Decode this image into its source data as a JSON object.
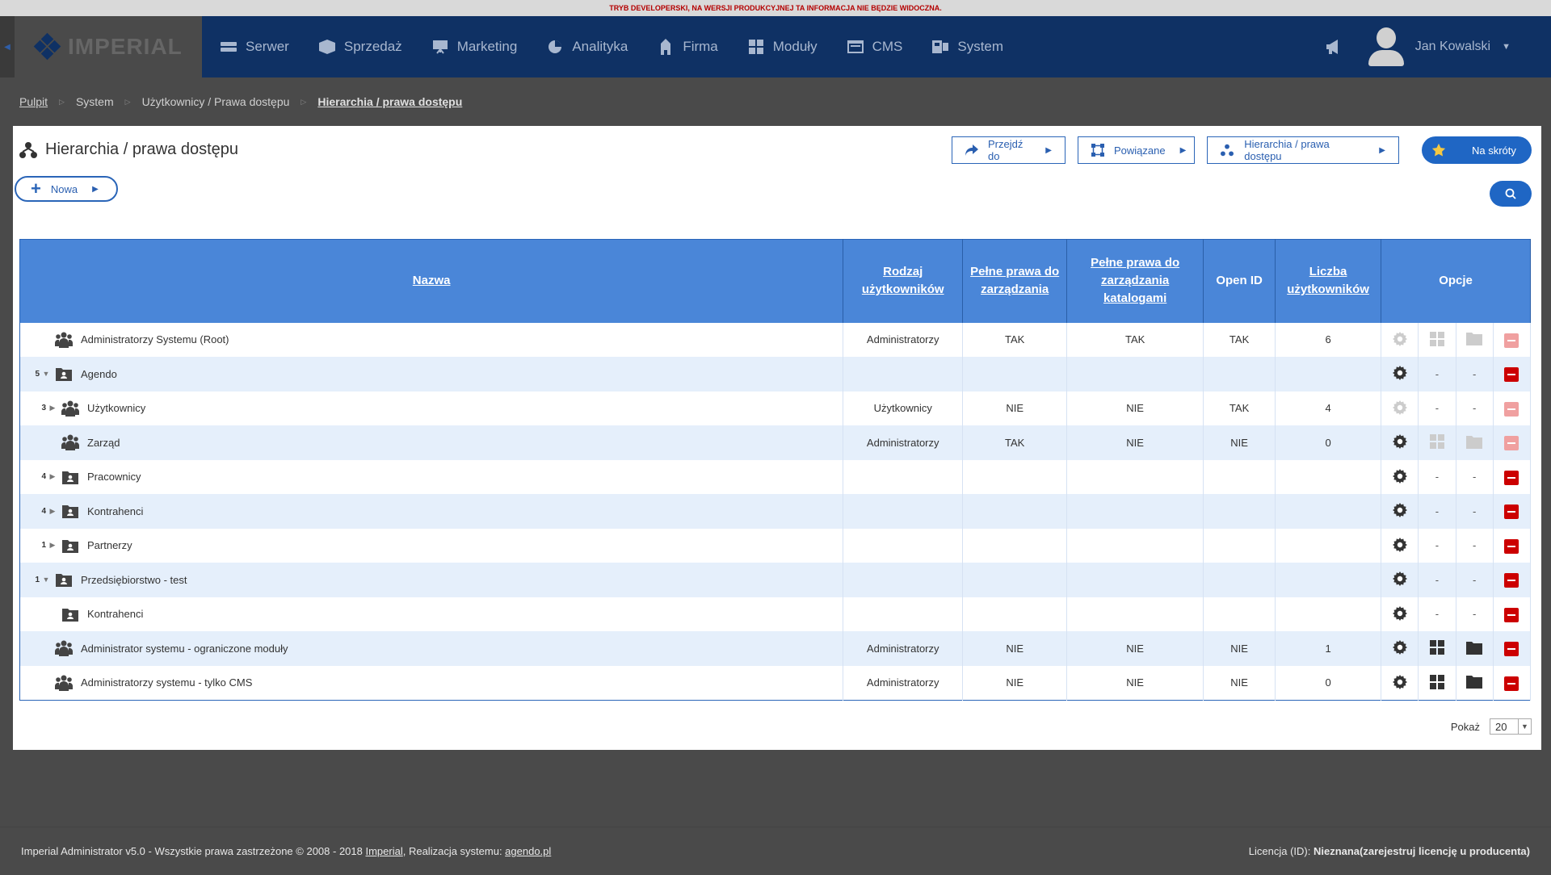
{
  "dev_banner": "TRYB DEVELOPERSKI, NA WERSJI PRODUKCYJNEJ TA INFORMACJA NIE BĘDZIE WIDOCZNA.",
  "logo": {
    "text": "IMPERIAL"
  },
  "nav": {
    "items": [
      {
        "label": "Serwer",
        "icon": "server-icon"
      },
      {
        "label": "Sprzedaż",
        "icon": "box-icon"
      },
      {
        "label": "Marketing",
        "icon": "presentation-icon"
      },
      {
        "label": "Analityka",
        "icon": "pie-chart-icon"
      },
      {
        "label": "Firma",
        "icon": "building-icon"
      },
      {
        "label": "Moduły",
        "icon": "grid-icon"
      },
      {
        "label": "CMS",
        "icon": "cms-window-icon"
      },
      {
        "label": "System",
        "icon": "system-icon"
      }
    ],
    "user_name": "Jan Kowalski"
  },
  "breadcrumb": {
    "items": [
      "Pulpit",
      "System",
      "Użytkownicy / Prawa dostępu"
    ],
    "current": "Hierarchia / prawa dostępu"
  },
  "page": {
    "title": "Hierarchia / prawa dostępu",
    "buttons": {
      "goto": "Przejdź do",
      "related": "Powiązane",
      "hierarchy": "Hierarchia / prawa dostępu",
      "shortcuts": "Na skróty",
      "new": "Nowa"
    }
  },
  "table": {
    "headers": {
      "name": "Nazwa",
      "user_type": "Rodzaj użytkowników",
      "full_rights": "Pełne prawa do zarządzania",
      "full_catalog_rights": "Pełne prawa do zarządzania katalogami",
      "open_id": "Open ID",
      "user_count": "Liczba użytkowników",
      "options": "Opcje"
    },
    "rows": [
      {
        "level": 0,
        "count": "",
        "arrow": "",
        "icon": "group",
        "name": "Administratorzy Systemu (Root)",
        "type": "Administratorzy",
        "full": "TAK",
        "catalog": "TAK",
        "openid": "TAK",
        "users": "6",
        "gear": "light",
        "grid": "light",
        "folder": "light",
        "del": "light"
      },
      {
        "level": 0,
        "count": "5",
        "arrow": "down",
        "icon": "folder-users",
        "name": "Agendo",
        "type": "",
        "full": "",
        "catalog": "",
        "openid": "",
        "users": "",
        "gear": "dark",
        "grid": "dash",
        "folder": "dash",
        "del": "dark"
      },
      {
        "level": 1,
        "count": "3",
        "arrow": "right",
        "icon": "group",
        "name": "Użytkownicy",
        "type": "Użytkownicy",
        "full": "NIE",
        "catalog": "NIE",
        "openid": "TAK",
        "users": "4",
        "gear": "light",
        "grid": "dash",
        "folder": "dash",
        "del": "light"
      },
      {
        "level": 1,
        "count": "",
        "arrow": "",
        "icon": "group",
        "name": "Zarząd",
        "type": "Administratorzy",
        "full": "TAK",
        "catalog": "NIE",
        "openid": "NIE",
        "users": "0",
        "gear": "dark",
        "grid": "light",
        "folder": "light",
        "del": "light"
      },
      {
        "level": 1,
        "count": "4",
        "arrow": "right",
        "icon": "folder-users",
        "name": "Pracownicy",
        "type": "",
        "full": "",
        "catalog": "",
        "openid": "",
        "users": "",
        "gear": "dark",
        "grid": "dash",
        "folder": "dash",
        "del": "dark"
      },
      {
        "level": 1,
        "count": "4",
        "arrow": "right",
        "icon": "folder-users",
        "name": "Kontrahenci",
        "type": "",
        "full": "",
        "catalog": "",
        "openid": "",
        "users": "",
        "gear": "dark",
        "grid": "dash",
        "folder": "dash",
        "del": "dark"
      },
      {
        "level": 1,
        "count": "1",
        "arrow": "right",
        "icon": "folder-users",
        "name": "Partnerzy",
        "type": "",
        "full": "",
        "catalog": "",
        "openid": "",
        "users": "",
        "gear": "dark",
        "grid": "dash",
        "folder": "dash",
        "del": "dark"
      },
      {
        "level": 0,
        "count": "1",
        "arrow": "down",
        "icon": "folder-users",
        "name": "Przedsiębiorstwo - test",
        "type": "",
        "full": "",
        "catalog": "",
        "openid": "",
        "users": "",
        "gear": "dark",
        "grid": "dash",
        "folder": "dash",
        "del": "dark"
      },
      {
        "level": 1,
        "count": "",
        "arrow": "",
        "icon": "folder-users",
        "name": "Kontrahenci",
        "type": "",
        "full": "",
        "catalog": "",
        "openid": "",
        "users": "",
        "gear": "dark",
        "grid": "dash",
        "folder": "dash",
        "del": "dark"
      },
      {
        "level": 0,
        "count": "",
        "arrow": "",
        "icon": "group",
        "name": "Administrator systemu - ograniczone moduły",
        "type": "Administratorzy",
        "full": "NIE",
        "catalog": "NIE",
        "openid": "NIE",
        "users": "1",
        "gear": "dark",
        "grid": "dark",
        "folder": "dark",
        "del": "dark"
      },
      {
        "level": 0,
        "count": "",
        "arrow": "",
        "icon": "group",
        "name": "Administratorzy systemu - tylko CMS",
        "type": "Administratorzy",
        "full": "NIE",
        "catalog": "NIE",
        "openid": "NIE",
        "users": "0",
        "gear": "dark",
        "grid": "dark",
        "folder": "dark",
        "del": "dark"
      }
    ]
  },
  "pager": {
    "label": "Pokaż",
    "value": "20"
  },
  "footer": {
    "left_prefix": "Imperial Administrator v5.0 - Wszystkie prawa zastrzeżone © 2008 - 2018 ",
    "left_link1": "Imperial",
    "left_mid": ", Realizacja systemu: ",
    "left_link2": "agendo.pl",
    "right_prefix": "Licencja (ID): ",
    "right_bold": "Nieznana(zarejestruj licencję u producenta)"
  },
  "colors": {
    "nav_bg": "#0f3164",
    "header_bg": "#4a86d8",
    "accent": "#1f66c4",
    "delete": "#cc0000",
    "row_alt": "#e5effb"
  }
}
